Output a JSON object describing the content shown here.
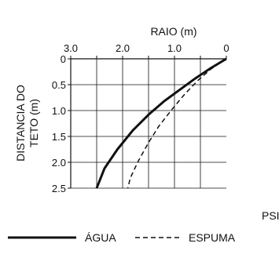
{
  "chart_data": {
    "type": "line",
    "xlabel": "RAIO (m)",
    "ylabel_lines": [
      "DISTANCIA DO",
      "TETO (m)"
    ],
    "xlim": [
      3.0,
      0
    ],
    "ylim": [
      0,
      2.5
    ],
    "x_ticks": [
      3.0,
      2.0,
      1.0,
      0
    ],
    "x_tick_labels": [
      "3.0",
      "2.0",
      "1.0",
      "0"
    ],
    "y_ticks": [
      0,
      0.5,
      1.0,
      1.5,
      2.0,
      2.5
    ],
    "y_tick_labels": [
      "0",
      "0.5",
      "1.0",
      "1.5",
      "2.0",
      "2.5"
    ],
    "grid": true,
    "legend_position": "bottom",
    "series": [
      {
        "name": "ÁGUA",
        "style": "solid",
        "color": "#111111",
        "x": [
          0,
          0.3,
          0.6,
          0.9,
          1.2,
          1.5,
          1.8,
          2.1,
          2.35,
          2.5
        ],
        "y": [
          0,
          0.18,
          0.38,
          0.6,
          0.82,
          1.08,
          1.38,
          1.75,
          2.12,
          2.5
        ]
      },
      {
        "name": "ESPUMA",
        "style": "dashed",
        "color": "#111111",
        "x": [
          0,
          0.3,
          0.55,
          0.8,
          1.05,
          1.3,
          1.5,
          1.7,
          1.85,
          1.9
        ],
        "y": [
          0,
          0.2,
          0.42,
          0.68,
          0.98,
          1.3,
          1.62,
          1.98,
          2.3,
          2.5
        ]
      }
    ]
  },
  "side_label": "PSI"
}
